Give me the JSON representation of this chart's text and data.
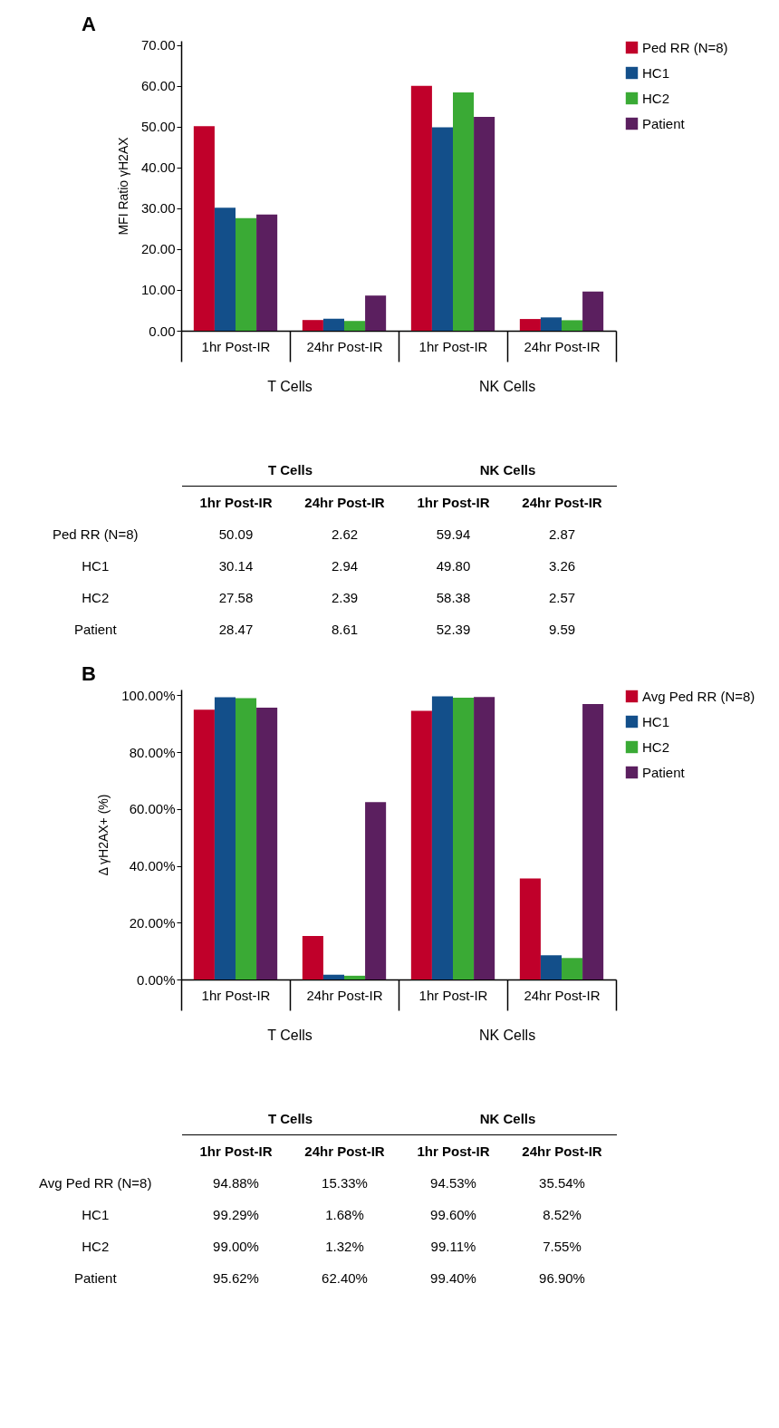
{
  "chart_data": [
    {
      "type": "bar",
      "title": "A",
      "ylabel": "MFI Ratio γH2AX",
      "categories": [
        "1hr Post-IR",
        "24hr Post-IR",
        "1hr Post-IR",
        "24hr Post-IR"
      ],
      "annotations": [
        "T Cells",
        "NK Cells"
      ],
      "legend": "right",
      "ylim": [
        0,
        71
      ],
      "yticks": [
        {
          "value": 0,
          "label": "0.00"
        },
        {
          "value": 10,
          "label": "10.00"
        },
        {
          "value": 20,
          "label": "20.00"
        },
        {
          "value": 30,
          "label": "30.00"
        },
        {
          "value": 40,
          "label": "40.00"
        },
        {
          "value": 50,
          "label": "50.00"
        },
        {
          "value": 60,
          "label": "60.00"
        },
        {
          "value": 70,
          "label": "70.00"
        }
      ],
      "series": [
        {
          "name": "Ped RR (N=8)",
          "color": "#c0002a",
          "values": [
            50.09,
            2.62,
            59.94,
            2.87
          ],
          "value_labels": [
            "50.09",
            "2.62",
            "59.94",
            "2.87"
          ]
        },
        {
          "name": "HC1",
          "color": "#134f8a",
          "values": [
            30.14,
            2.94,
            49.8,
            3.26
          ],
          "value_labels": [
            "30.14",
            "2.94",
            "49.80",
            "3.26"
          ]
        },
        {
          "name": "HC2",
          "color": "#3aaa35",
          "values": [
            27.58,
            2.39,
            58.38,
            2.57
          ],
          "value_labels": [
            "27.58",
            "2.39",
            "58.38",
            "2.57"
          ]
        },
        {
          "name": "Patient",
          "color": "#5b1f5f",
          "values": [
            28.47,
            8.61,
            52.39,
            9.59
          ],
          "value_labels": [
            "28.47",
            "8.61",
            "52.39",
            "9.59"
          ]
        }
      ]
    },
    {
      "type": "bar",
      "title": "B",
      "ylabel": "Δ γH2AX+ (%)",
      "categories": [
        "1hr Post-IR",
        "24hr Post-IR",
        "1hr Post-IR",
        "24hr Post-IR"
      ],
      "annotations": [
        "T Cells",
        "NK Cells"
      ],
      "legend": "right",
      "ylim": [
        0,
        102
      ],
      "yticks": [
        {
          "value": 0,
          "label": "0.00%"
        },
        {
          "value": 20,
          "label": "20.00%"
        },
        {
          "value": 40,
          "label": "40.00%"
        },
        {
          "value": 60,
          "label": "60.00%"
        },
        {
          "value": 80,
          "label": "80.00%"
        },
        {
          "value": 100,
          "label": "100.00%"
        }
      ],
      "series": [
        {
          "name": "Avg Ped RR (N=8)",
          "color": "#c0002a",
          "values": [
            94.88,
            15.33,
            94.53,
            35.54
          ],
          "value_labels": [
            "94.88%",
            "15.33%",
            "94.53%",
            "35.54%"
          ]
        },
        {
          "name": "HC1",
          "color": "#134f8a",
          "values": [
            99.29,
            1.68,
            99.6,
            8.52
          ],
          "value_labels": [
            "99.29%",
            "1.68%",
            "99.60%",
            "8.52%"
          ]
        },
        {
          "name": "HC2",
          "color": "#3aaa35",
          "values": [
            99.0,
            1.32,
            99.11,
            7.55
          ],
          "value_labels": [
            "99.00%",
            "1.32%",
            "99.11%",
            "7.55%"
          ]
        },
        {
          "name": "Patient",
          "color": "#5b1f5f",
          "values": [
            95.62,
            62.4,
            99.4,
            96.9
          ],
          "value_labels": [
            "95.62%",
            "62.40%",
            "99.40%",
            "96.90%"
          ]
        }
      ]
    }
  ]
}
